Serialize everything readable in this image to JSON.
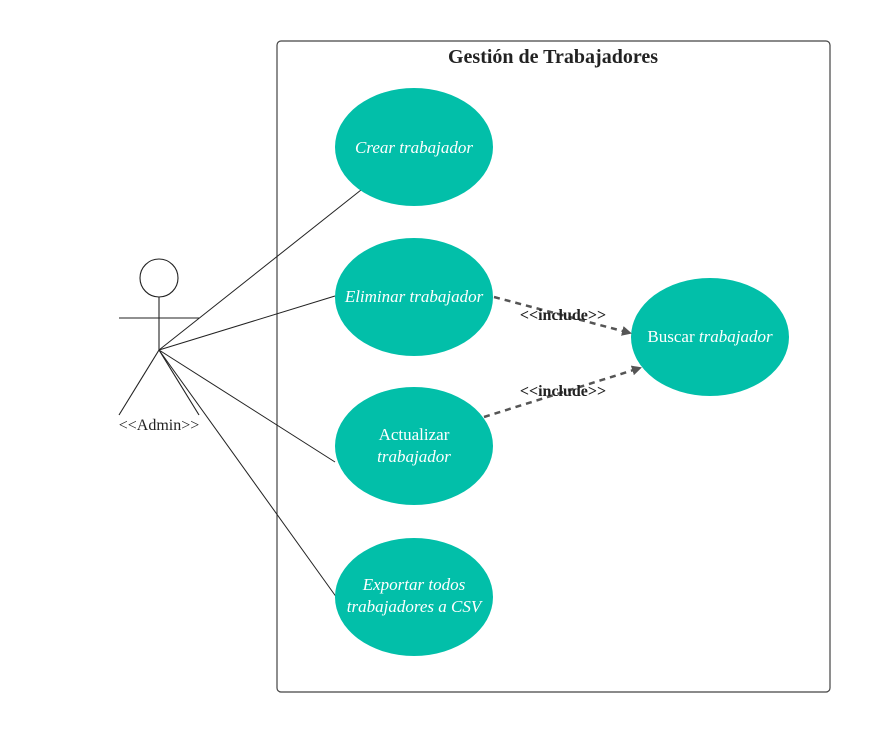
{
  "diagram": {
    "system_title": "Gestión de Trabajadores",
    "actor": {
      "label": "<<Admin>>"
    },
    "use_cases": [
      {
        "id": "crear",
        "lines": [
          {
            "text": "Crear trabajador",
            "italic": true
          }
        ]
      },
      {
        "id": "eliminar",
        "lines": [
          {
            "text": "Eliminar trabajador",
            "italic": true
          }
        ]
      },
      {
        "id": "actualizar",
        "lines": [
          {
            "text": "Actualizar",
            "italic": false
          },
          {
            "text": "trabajador",
            "italic": true
          }
        ]
      },
      {
        "id": "exportar",
        "lines": [
          {
            "text": "Exportar todos",
            "italic": true
          },
          {
            "text": "trabajadores a CSV",
            "italic": true
          }
        ]
      }
    ],
    "buscar": {
      "plain": "Buscar ",
      "italic": "trabajador"
    },
    "include_label": "<<include>>",
    "colors": {
      "use_case_fill": "#02bfa9",
      "text_on_use_case": "#ffffff",
      "include_arrow": "#555555"
    }
  }
}
